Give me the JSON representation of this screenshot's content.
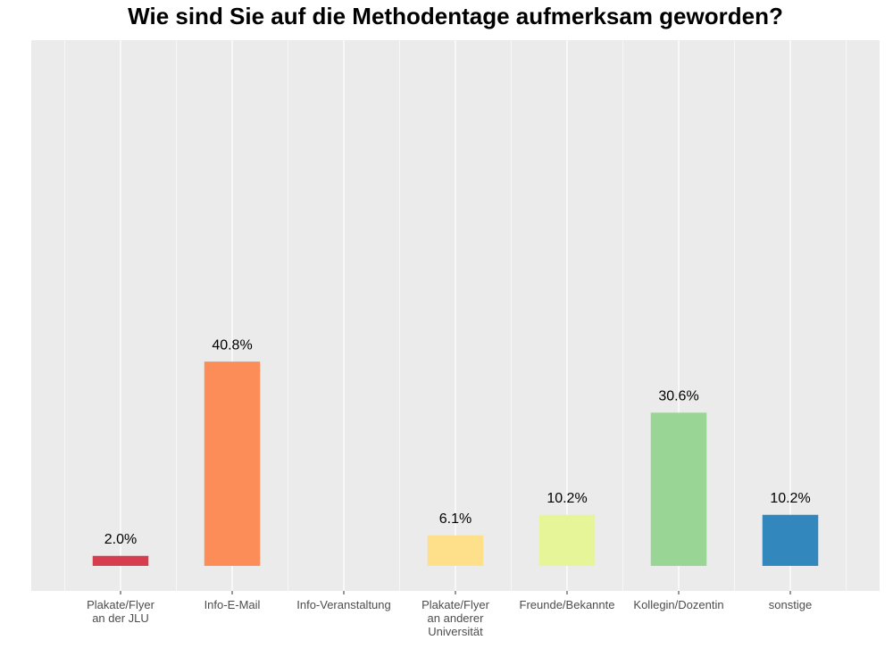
{
  "chart_data": {
    "type": "bar",
    "title": "Wie sind Sie auf die Methodentage aufmerksam geworden?",
    "categories": [
      "Plakate/Flyer\nan der JLU",
      "Info-E-Mail",
      "Info-Veranstaltung",
      "Plakate/Flyer\nan anderer\nUniversität",
      "Freunde/Bekannte",
      "Kollegin/Dozentin",
      "sonstige"
    ],
    "values": [
      2.0,
      40.8,
      0,
      6.1,
      10.2,
      30.6,
      10.2
    ],
    "value_labels": [
      "2.0%",
      "40.8%",
      null,
      "6.1%",
      "10.2%",
      "30.6%",
      "10.2%"
    ],
    "colors": [
      "#d53e4f",
      "#fc8d59",
      null,
      "#fee08b",
      "#e6f598",
      "#99d594",
      "#3288bd"
    ],
    "ylim": [
      -5,
      105
    ],
    "grid": true
  }
}
